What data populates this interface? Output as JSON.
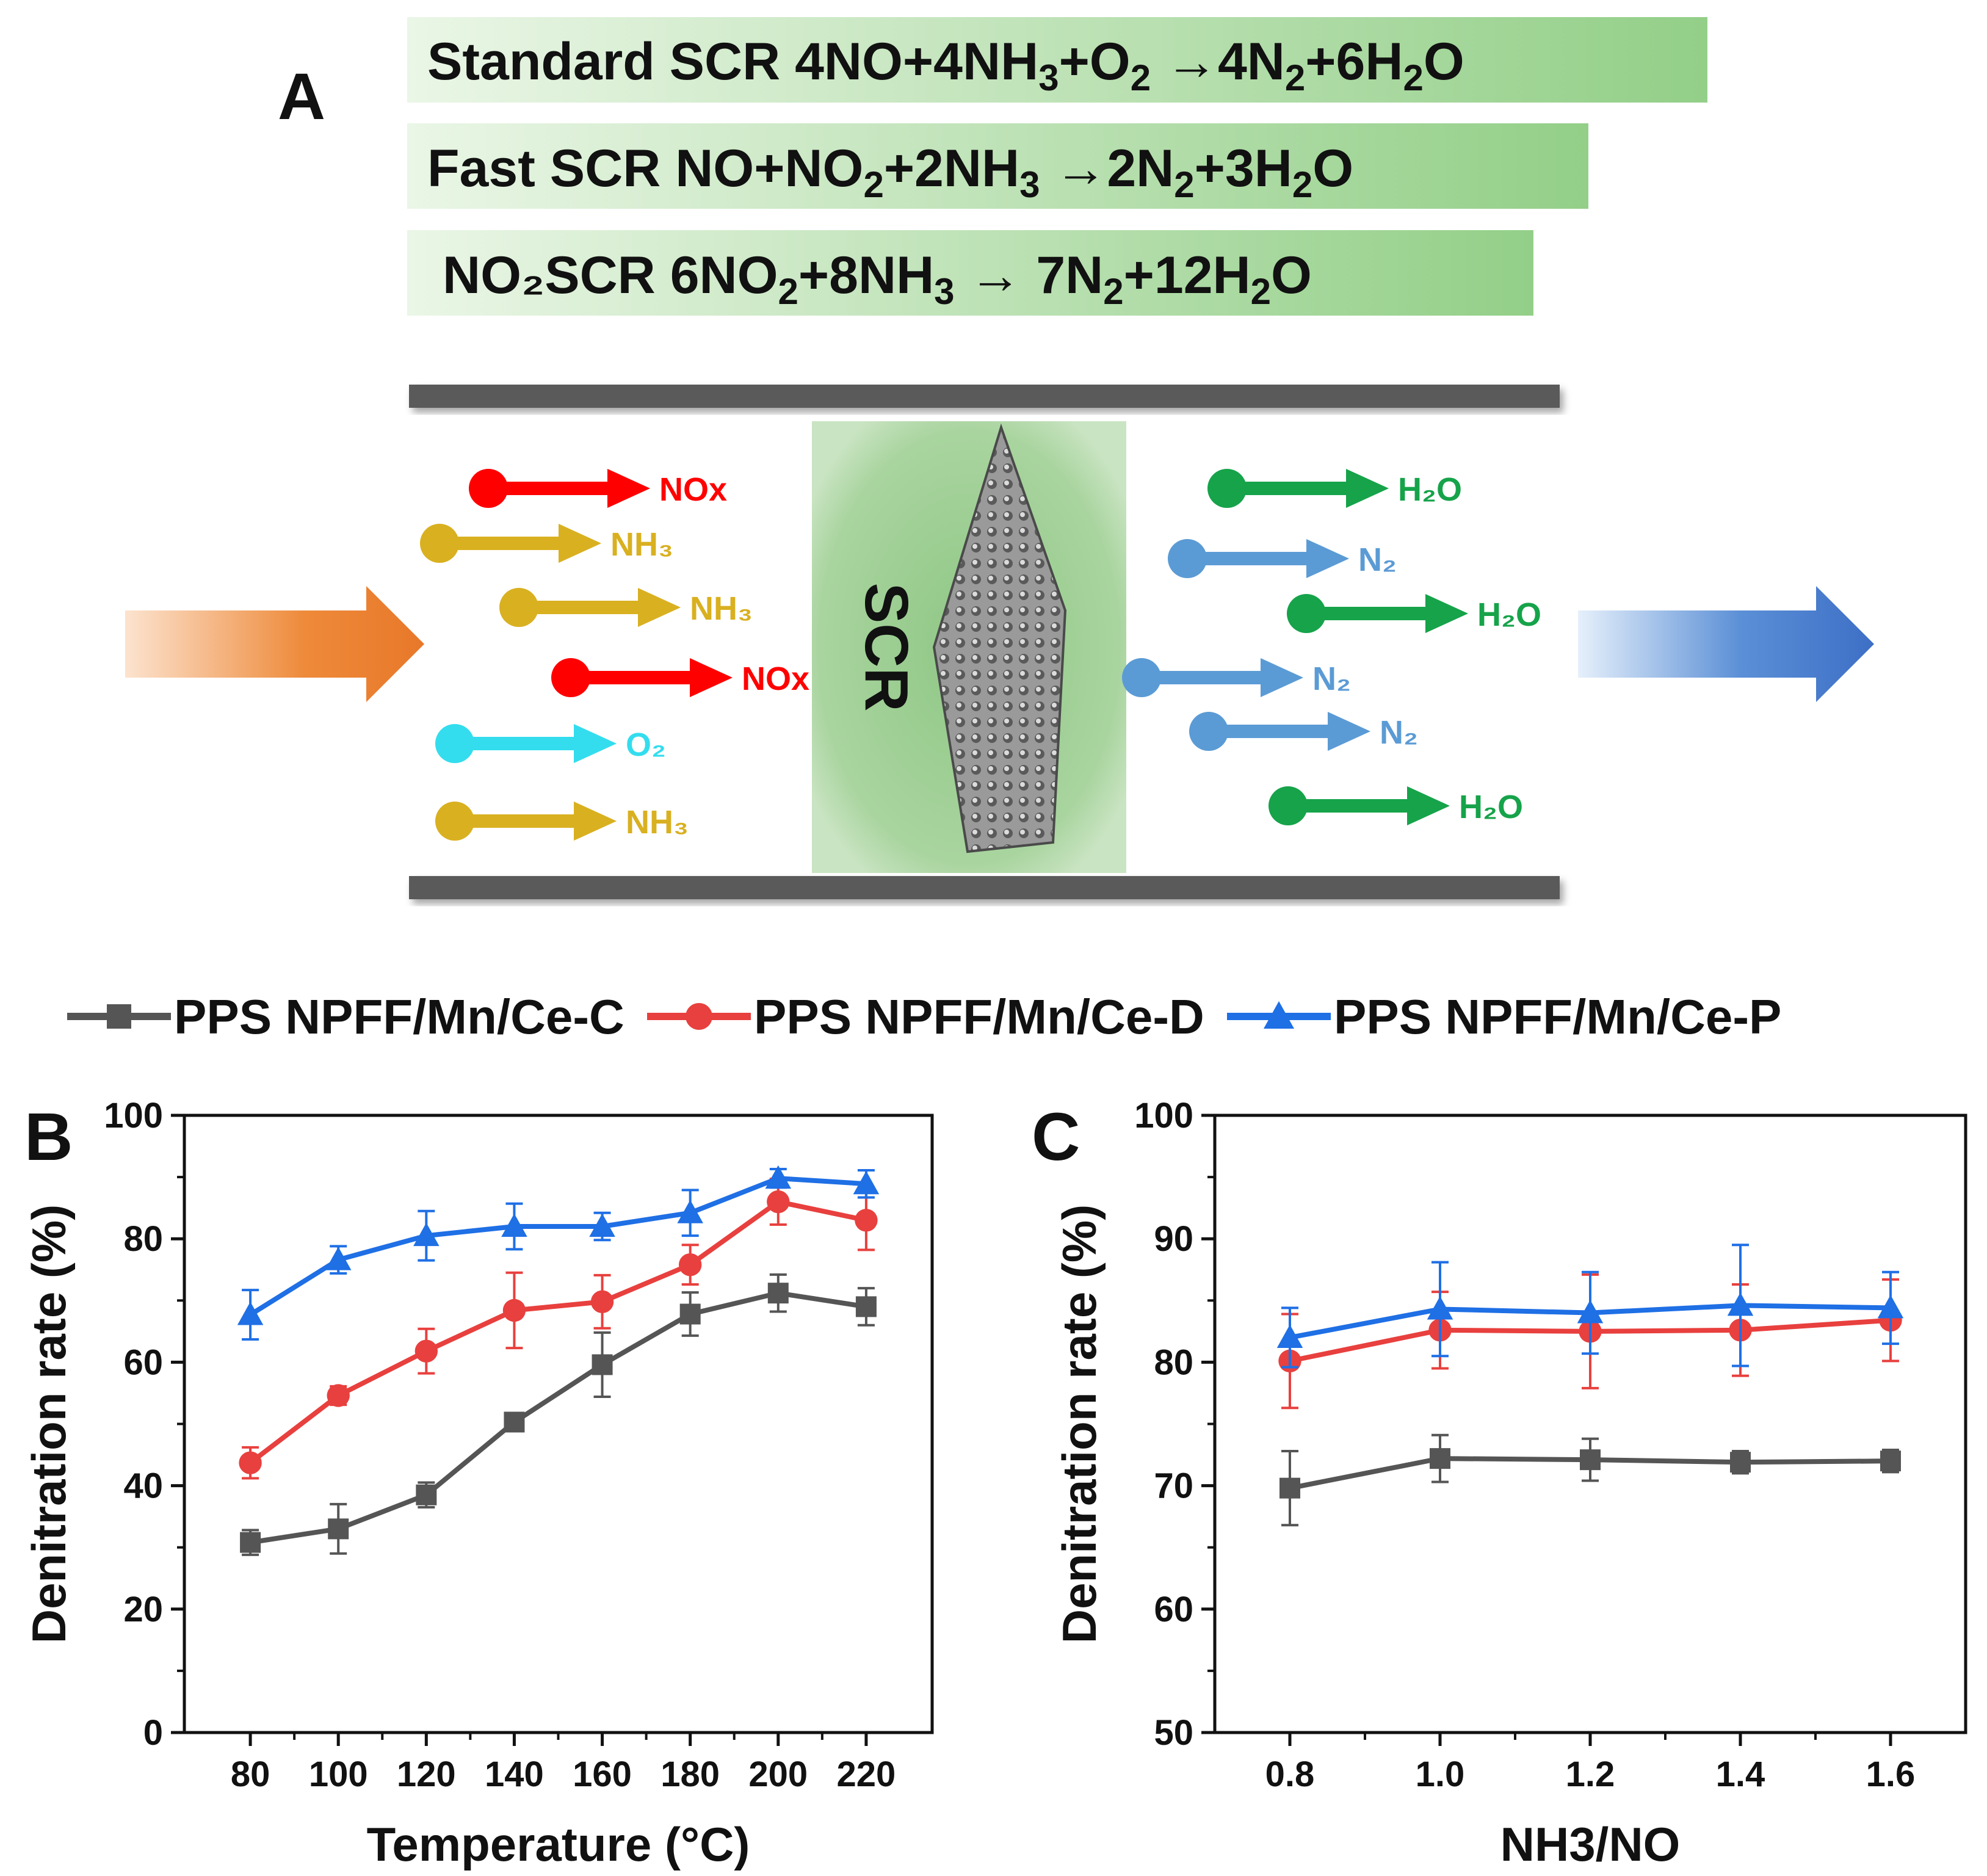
{
  "panel_a": {
    "letter": "A",
    "equations": [
      {
        "label": "Standard SCR",
        "segments": [
          [
            "4NO+4NH",
            ""
          ],
          [
            "3",
            "sub"
          ],
          [
            "+O",
            ""
          ],
          [
            "2",
            "sub"
          ],
          [
            "  →4N",
            ""
          ],
          [
            "2",
            "sub"
          ],
          [
            "+6H",
            ""
          ],
          [
            "2",
            "sub"
          ],
          [
            "O",
            ""
          ]
        ]
      },
      {
        "label": "Fast SCR",
        "segments": [
          [
            "NO+NO",
            ""
          ],
          [
            "2",
            "sub"
          ],
          [
            "+2NH",
            ""
          ],
          [
            "3",
            "sub"
          ],
          [
            "  →2N",
            ""
          ],
          [
            "2",
            "sub"
          ],
          [
            "+3H",
            ""
          ],
          [
            "2",
            "sub"
          ],
          [
            "O",
            ""
          ]
        ]
      },
      {
        "label": "NO₂SCR",
        "segments": [
          [
            "6NO",
            ""
          ],
          [
            "2",
            "sub"
          ],
          [
            "+8NH",
            ""
          ],
          [
            "3",
            "sub"
          ],
          [
            "  →  7N",
            ""
          ],
          [
            "2",
            "sub"
          ],
          [
            "+12H",
            ""
          ],
          [
            "2",
            "sub"
          ],
          [
            "O",
            ""
          ]
        ]
      }
    ],
    "reactor_label": "SCR",
    "inlet_molecules": [
      {
        "name": "NOx",
        "color": "#ff0000"
      },
      {
        "name": "NH₃",
        "color": "#d9b020"
      },
      {
        "name": "NH₃",
        "color": "#d9b020"
      },
      {
        "name": "NOx",
        "color": "#ff0000"
      },
      {
        "name": "O₂",
        "color": "#33ddee"
      },
      {
        "name": "NH₃",
        "color": "#d9b020"
      }
    ],
    "outlet_molecules": [
      {
        "name": "H₂O",
        "color": "#16a34a"
      },
      {
        "name": "N₂",
        "color": "#5b9bd5"
      },
      {
        "name": "H₂O",
        "color": "#16a34a"
      },
      {
        "name": "N₂",
        "color": "#5b9bd5"
      },
      {
        "name": "N₂",
        "color": "#5b9bd5"
      },
      {
        "name": "H₂O",
        "color": "#16a34a"
      }
    ]
  },
  "legend": [
    {
      "name": "PPS NPFF/Mn/Ce-C",
      "color": "#555555",
      "marker": "square"
    },
    {
      "name": "PPS NPFF/Mn/Ce-D",
      "color": "#e8403e",
      "marker": "circle"
    },
    {
      "name": "PPS NPFF/Mn/Ce-P",
      "color": "#1f6fe5",
      "marker": "triangle"
    }
  ],
  "chart_data": [
    {
      "panel": "B",
      "type": "line",
      "xlabel": "Temperature (°C)",
      "ylabel": "Denitration rate (%)",
      "xlim": [
        65,
        235
      ],
      "ylim": [
        0,
        100
      ],
      "x": [
        80,
        100,
        120,
        140,
        160,
        180,
        200,
        220
      ],
      "xticks": [
        80,
        100,
        120,
        140,
        160,
        180,
        200,
        220
      ],
      "yticks": [
        0,
        20,
        40,
        60,
        80,
        100
      ],
      "series": [
        {
          "name": "PPS NPFF/Mn/Ce-C",
          "color": "#555555",
          "marker": "square",
          "values": [
            30.8,
            33.0,
            38.5,
            50.3,
            59.6,
            67.8,
            71.2,
            69.0
          ],
          "errors": [
            2.0,
            4.0,
            2.0,
            1.0,
            5.2,
            3.5,
            3.0,
            3.0
          ]
        },
        {
          "name": "PPS NPFF/Mn/Ce-D",
          "color": "#e8403e",
          "marker": "circle",
          "values": [
            43.7,
            54.6,
            61.8,
            68.4,
            69.8,
            75.8,
            86.0,
            83.0
          ],
          "errors": [
            2.5,
            1.5,
            3.6,
            6.1,
            4.3,
            3.2,
            3.7,
            4.8
          ]
        },
        {
          "name": "PPS NPFF/Mn/Ce-P",
          "color": "#1f6fe5",
          "marker": "triangle",
          "values": [
            67.7,
            76.6,
            80.5,
            82.0,
            82.0,
            84.2,
            89.8,
            88.9
          ],
          "errors": [
            4.0,
            2.2,
            4.0,
            3.7,
            2.2,
            3.7,
            1.5,
            2.2
          ]
        }
      ]
    },
    {
      "panel": "C",
      "type": "line",
      "xlabel": "NH3/NO",
      "ylabel": "Denitration rate (%)",
      "xlim": [
        0.7,
        1.7
      ],
      "ylim": [
        50,
        100
      ],
      "x": [
        0.8,
        1.0,
        1.2,
        1.4,
        1.6
      ],
      "xticks": [
        "0.8",
        "1.0",
        "1.2",
        "1.4",
        "1.6"
      ],
      "yticks": [
        50,
        60,
        70,
        80,
        90,
        100
      ],
      "series": [
        {
          "name": "PPS NPFF/Mn/Ce-C",
          "color": "#555555",
          "marker": "square",
          "values": [
            69.8,
            72.2,
            72.1,
            71.9,
            72.0
          ],
          "errors": [
            3.0,
            1.9,
            1.7,
            0.9,
            0.9
          ]
        },
        {
          "name": "PPS NPFF/Mn/Ce-D",
          "color": "#e8403e",
          "marker": "circle",
          "values": [
            80.1,
            82.6,
            82.5,
            82.6,
            83.4
          ],
          "errors": [
            3.8,
            3.1,
            4.6,
            3.7,
            3.3
          ]
        },
        {
          "name": "PPS NPFF/Mn/Ce-P",
          "color": "#1f6fe5",
          "marker": "triangle",
          "values": [
            82.0,
            84.3,
            84.0,
            84.6,
            84.4
          ],
          "errors": [
            2.4,
            3.8,
            3.3,
            4.9,
            2.9
          ]
        }
      ]
    }
  ]
}
